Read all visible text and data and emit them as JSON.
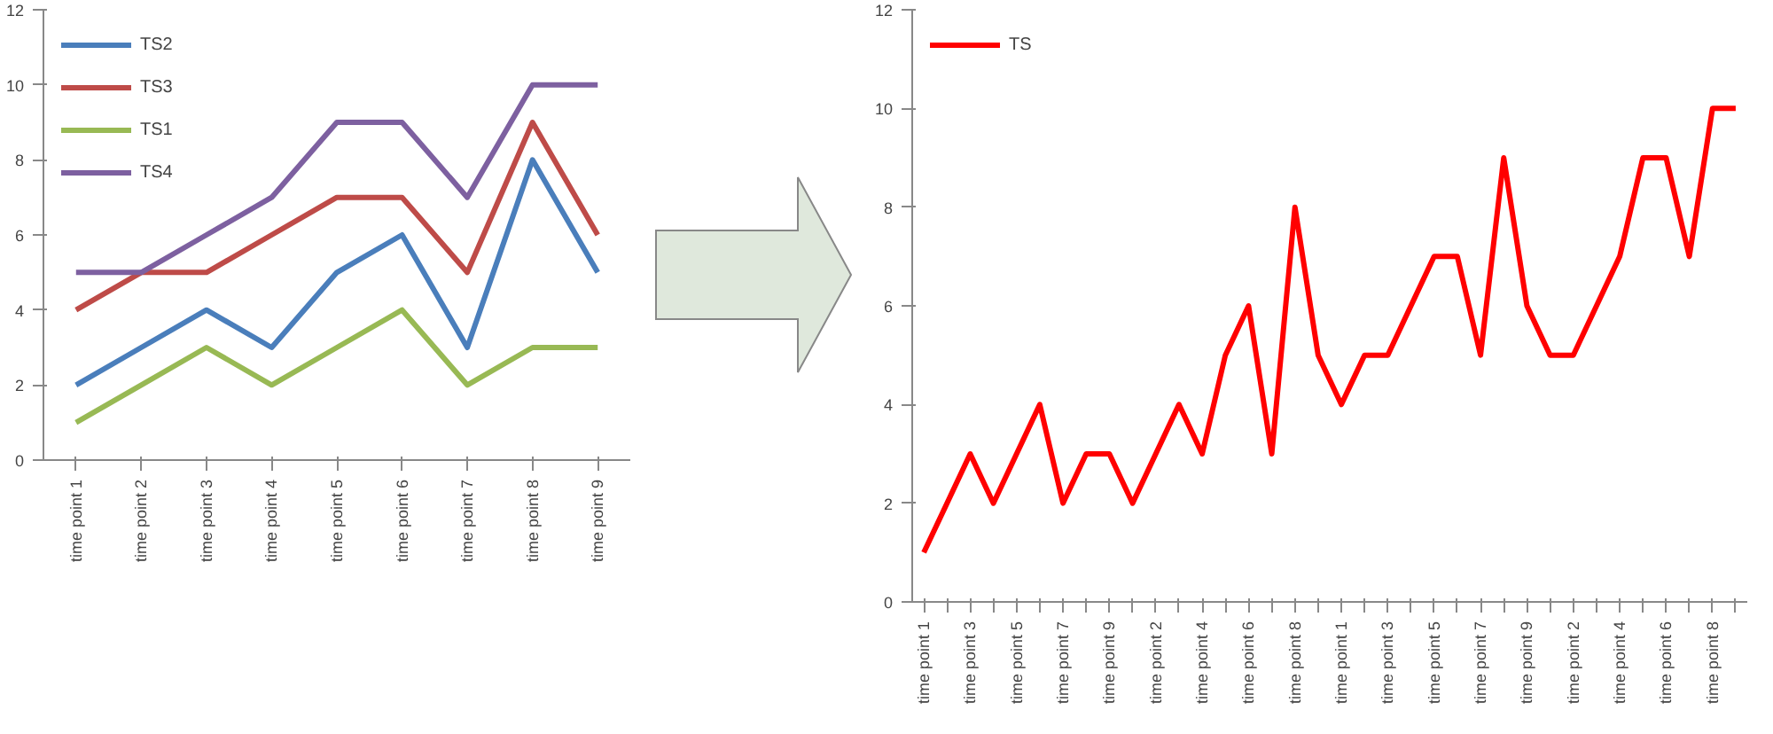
{
  "chart_data": [
    {
      "type": "line",
      "categories": [
        "time point 1",
        "time point 2",
        "time point 3",
        "time point 4",
        "time point 5",
        "time point 6",
        "time point 7",
        "time point 8",
        "time point 9"
      ],
      "series": [
        {
          "name": "TS2",
          "color": "#4a7ebb",
          "values": [
            2,
            3,
            4,
            3,
            5,
            6,
            3,
            8,
            5
          ]
        },
        {
          "name": "TS3",
          "color": "#be4b48",
          "values": [
            4,
            5,
            5,
            6,
            7,
            7,
            5,
            9,
            6
          ]
        },
        {
          "name": "TS1",
          "color": "#98b954",
          "values": [
            1,
            2,
            3,
            2,
            3,
            4,
            2,
            3,
            3
          ]
        },
        {
          "name": "TS4",
          "color": "#7d60a0",
          "values": [
            5,
            5,
            6,
            7,
            9,
            9,
            7,
            10,
            10
          ]
        }
      ],
      "ylim": [
        0,
        12
      ],
      "yticks": [
        0,
        2,
        4,
        6,
        8,
        10,
        12
      ],
      "grid": false,
      "legend": "top left",
      "marker": "none",
      "line_style": "solid"
    },
    {
      "type": "line",
      "categories": [
        "time point 1",
        null,
        "time point 3",
        null,
        "time point 5",
        null,
        "time point 7",
        null,
        "time point 9",
        null,
        "time point 2",
        null,
        "time point 4",
        null,
        "time point 6",
        null,
        "time point 8",
        null,
        "time point 1",
        null,
        "time point 3",
        null,
        "time point 5",
        null,
        "time point 7",
        null,
        "time point 9",
        null,
        "time point 2",
        null,
        "time point 4",
        null,
        "time point 6",
        null,
        "time point 8",
        null
      ],
      "series": [
        {
          "name": "TS",
          "color": "#ff0000",
          "values": [
            1,
            2,
            3,
            2,
            3,
            4,
            2,
            3,
            3,
            2,
            3,
            4,
            3,
            5,
            6,
            3,
            8,
            5,
            4,
            5,
            5,
            6,
            7,
            7,
            5,
            9,
            6,
            5,
            5,
            6,
            7,
            9,
            9,
            7,
            10,
            10
          ]
        }
      ],
      "ylim": [
        0,
        12
      ],
      "yticks": [
        0,
        2,
        4,
        6,
        8,
        10,
        12
      ],
      "grid": false,
      "legend": "top left",
      "marker": "none",
      "line_style": "solid"
    }
  ]
}
